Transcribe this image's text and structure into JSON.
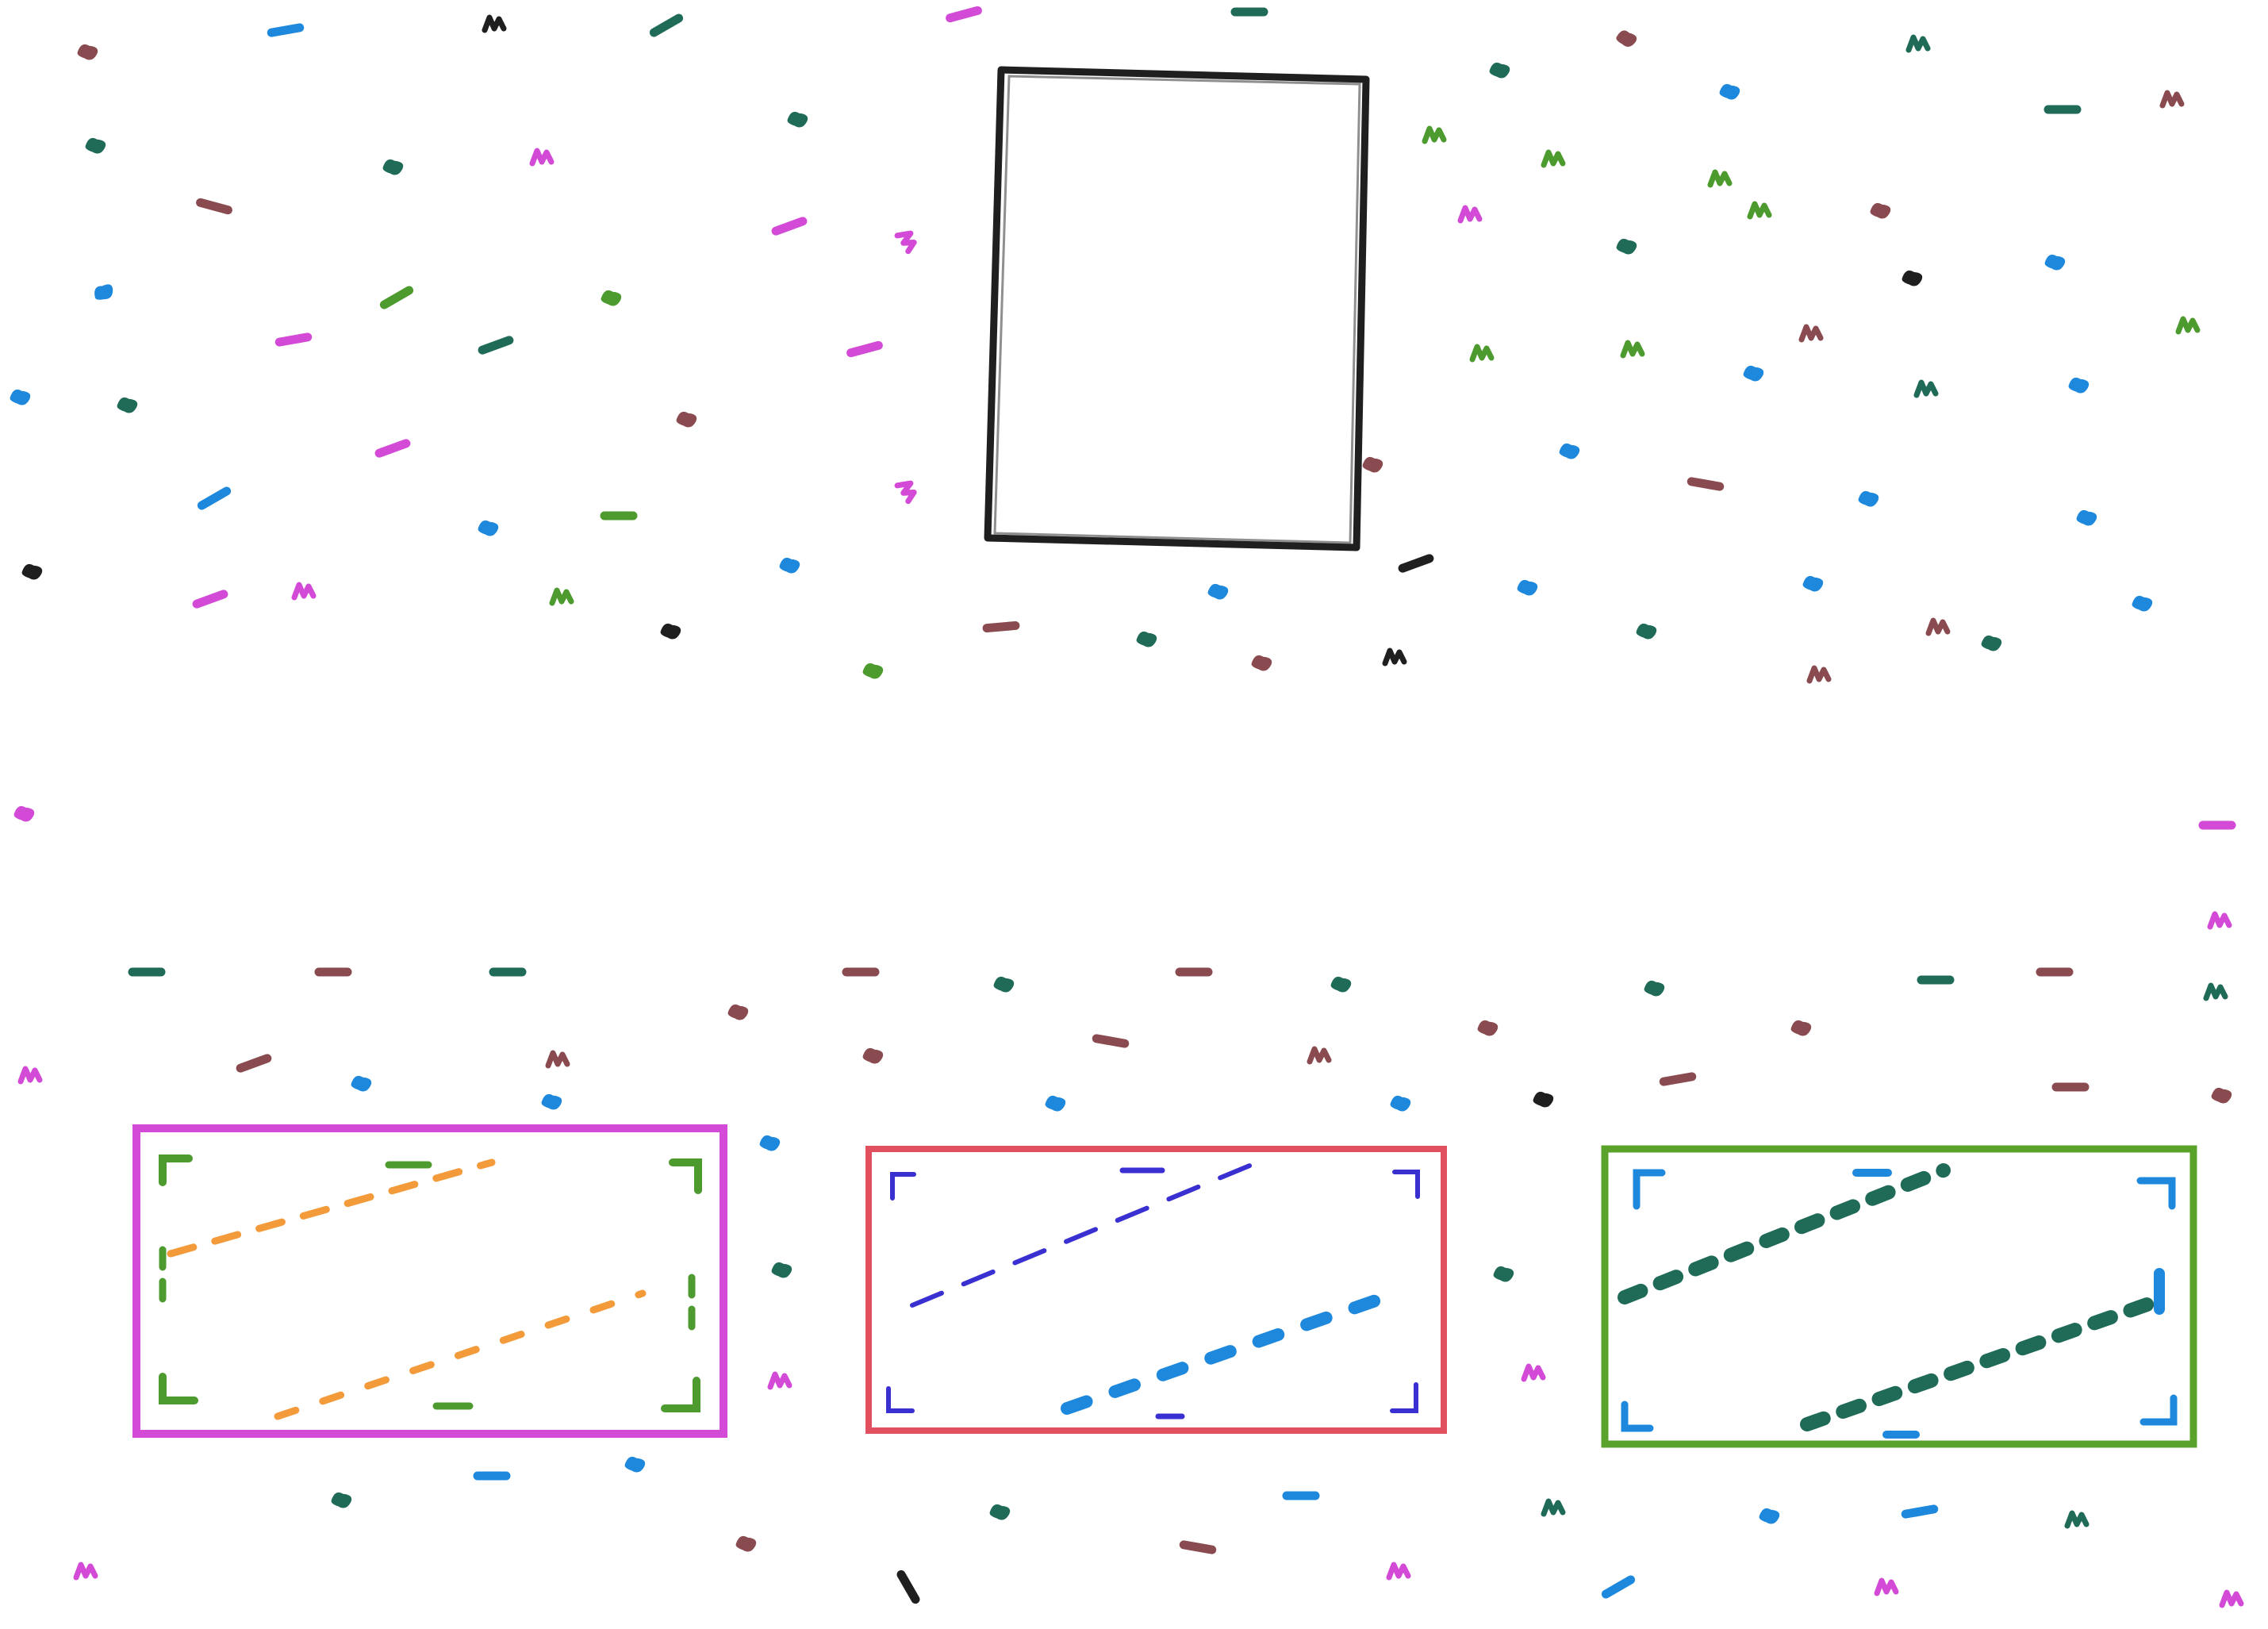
{
  "canvas": {
    "background": "#ffffff"
  },
  "palette": {
    "black": "#1f1f1f",
    "brown": "#8a4b50",
    "teal": "#1f6b57",
    "green": "#4d9a2f",
    "blue": "#1e88dd",
    "magenta": "#d24ad6",
    "orange": "#f39a3a",
    "indigo": "#3a2fd0",
    "red": "#e0505e",
    "lime": "#5aa32a"
  },
  "main_frame": {
    "stroke": "black",
    "fill": "#ffffff"
  },
  "panels": [
    {
      "name": "panel-left",
      "border": "magenta",
      "corner": "green",
      "dash": "orange"
    },
    {
      "name": "panel-middle",
      "border": "red",
      "corner": "indigo",
      "dash": "blue"
    },
    {
      "name": "panel-right",
      "border": "lime",
      "corner": "blue",
      "dash": "teal"
    }
  ]
}
